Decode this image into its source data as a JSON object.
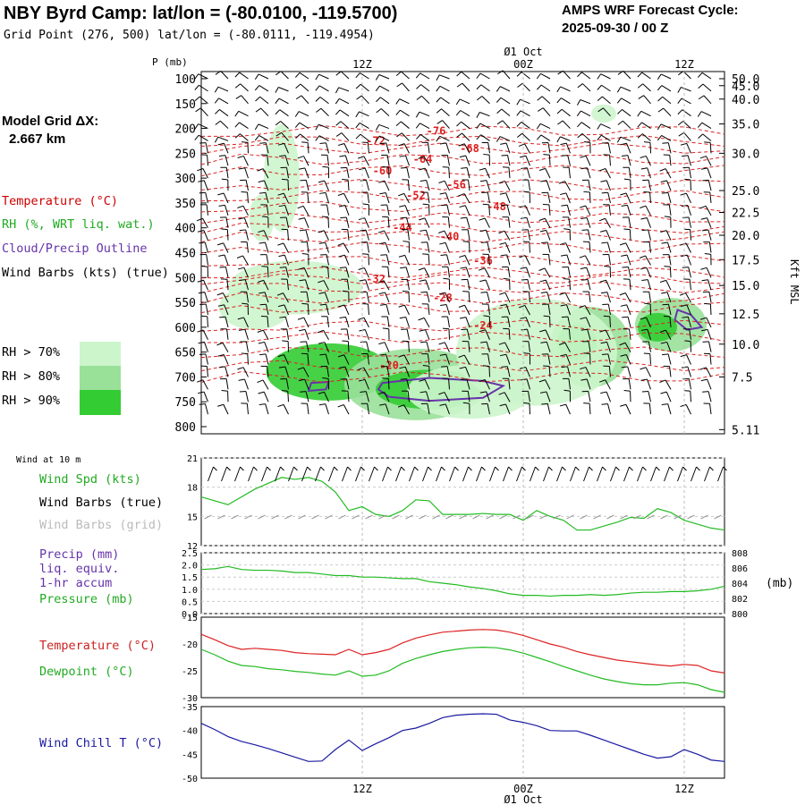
{
  "header": {
    "title": "NBY Byrd Camp:  lat/lon = (-80.0100, -119.5700)",
    "grid_point": "Grid Point (276, 500) lat/lon = (-80.0111, -119.4954)",
    "cycle_label": "AMPS WRF Forecast Cycle:",
    "cycle_value": "2025-09-30 / 00  Z"
  },
  "sidebar": {
    "model_grid_label": "Model Grid ΔX:",
    "model_grid_value": "2.667 km",
    "legend": [
      {
        "label": "Temperature (°C)",
        "color": "#cc0000"
      },
      {
        "label": "RH (%, WRT liq. wat.)",
        "color": "#22aa22"
      },
      {
        "label": "Cloud/Precip Outline",
        "color": "#6633aa"
      },
      {
        "label": "Wind Barbs (kts) (true)",
        "color": "#000000"
      }
    ],
    "rh_swatches": [
      {
        "label": "RH > 70%",
        "color": "#ccf5cc"
      },
      {
        "label": "RH > 80%",
        "color": "#99e099"
      },
      {
        "label": "RH > 90%",
        "color": "#33cc33"
      }
    ]
  },
  "colors": {
    "temperature": "#dd2222",
    "dewpoint": "#22bb22",
    "wind_chill": "#1a1aa0",
    "wind_speed": "#22bb22",
    "pressure": "#22bb22",
    "outline": "#6633aa",
    "grid": "#999999"
  },
  "time_axis": {
    "top_labels": [
      {
        "text": "12Z",
        "hour": 12
      },
      {
        "text": "00Z",
        "hour": 24
      },
      {
        "text": "12Z",
        "hour": 36
      }
    ],
    "date_label": "Ø1 Oct",
    "start_hour": 0,
    "end_hour": 39
  },
  "chart_data": [
    {
      "type": "heatmap",
      "title": "Vertical cross-section (time-height)",
      "ylabel": "P (mb)",
      "y2label": "Kft MSL",
      "pressure_ticks": [
        100,
        150,
        200,
        250,
        300,
        350,
        400,
        450,
        500,
        550,
        600,
        650,
        700,
        750,
        800
      ],
      "height_ticks": [
        {
          "label": "50.0",
          "p": 100
        },
        {
          "label": "45.0",
          "p": 114
        },
        {
          "label": "40.0",
          "p": 141
        },
        {
          "label": "35.0",
          "p": 191
        },
        {
          "label": "30.0",
          "p": 250
        },
        {
          "label": "25.0",
          "p": 325
        },
        {
          "label": "22.5",
          "p": 369
        },
        {
          "label": "20.0",
          "p": 415
        },
        {
          "label": "17.5",
          "p": 464
        },
        {
          "label": "15.0",
          "p": 516
        },
        {
          "label": "12.5",
          "p": 573
        },
        {
          "label": "10.0",
          "p": 634
        },
        {
          "label": "7.5",
          "p": 700
        },
        {
          "label": "5.11",
          "p": 806
        }
      ],
      "temperature_labels": [
        {
          "text": "-76",
          "hour": 17.5,
          "p": 205
        },
        {
          "text": "-72",
          "hour": 13,
          "p": 225
        },
        {
          "text": "-68",
          "hour": 20,
          "p": 240
        },
        {
          "text": "-64",
          "hour": 16.5,
          "p": 262
        },
        {
          "text": "-60",
          "hour": 13.5,
          "p": 285
        },
        {
          "text": "-56",
          "hour": 19,
          "p": 313
        },
        {
          "text": "-52",
          "hour": 16,
          "p": 335
        },
        {
          "text": "-48",
          "hour": 22,
          "p": 357
        },
        {
          "text": "-44",
          "hour": 15,
          "p": 400
        },
        {
          "text": "-40",
          "hour": 18.5,
          "p": 418
        },
        {
          "text": "-36",
          "hour": 21,
          "p": 466
        },
        {
          "text": "-32",
          "hour": 13,
          "p": 503
        },
        {
          "text": "-28",
          "hour": 18,
          "p": 541
        },
        {
          "text": "-24",
          "hour": 21,
          "p": 597
        },
        {
          "text": "-20",
          "hour": 14,
          "p": 677
        }
      ]
    },
    {
      "type": "line",
      "title": "Wind at 10 m",
      "ylim": [
        12,
        21
      ],
      "yticks": [
        12,
        15,
        18,
        21
      ],
      "series": [
        {
          "name": "Wind Spd (kts)",
          "x": [
            0,
            2,
            4,
            6,
            7,
            8,
            9,
            10,
            11,
            12,
            13,
            14,
            15,
            16,
            17,
            18,
            19,
            20,
            21,
            22,
            23,
            24,
            25,
            26,
            27,
            28,
            29,
            30,
            31,
            32,
            33,
            34,
            35,
            36,
            37,
            38,
            39
          ],
          "values": [
            17,
            16.2,
            17.8,
            19,
            18.8,
            19,
            18.6,
            17.5,
            15.6,
            16,
            15.2,
            15,
            15.6,
            16.7,
            16.6,
            15.2,
            15.2,
            15.2,
            15.3,
            15.2,
            15.2,
            14.6,
            15.6,
            15,
            14.6,
            13.6,
            13.6,
            14,
            14.4,
            14.9,
            14.8,
            15.8,
            15.4,
            14.6,
            14.2,
            13.8,
            13.6
          ]
        }
      ],
      "legend": [
        "Wind Spd (kts)",
        "Wind Barbs (true)",
        "Wind Barbs (grid)"
      ]
    },
    {
      "type": "line",
      "title": "Precip / Pressure",
      "ylim": [
        0,
        2.5
      ],
      "yticks": [
        "0.0",
        "0.5",
        "1.0",
        "1.5",
        "2.0",
        "2.5"
      ],
      "y2lim": [
        800,
        808
      ],
      "y2ticks": [
        "800",
        "802",
        "804",
        "806",
        "808"
      ],
      "y2label": "(mb)",
      "series": [
        {
          "name": "Precip (mm)",
          "values": [
            0,
            0,
            0,
            0,
            0,
            0,
            0,
            0,
            0,
            0,
            0,
            0,
            0,
            0,
            0,
            0,
            0,
            0,
            0,
            0,
            0,
            0,
            0,
            0,
            0,
            0,
            0,
            0,
            0,
            0,
            0,
            0,
            0,
            0,
            0,
            0,
            0,
            0,
            0,
            0
          ]
        },
        {
          "name": "Pressure (mb)",
          "x": [
            0,
            1,
            2,
            3,
            4,
            5,
            6,
            7,
            8,
            9,
            10,
            11,
            12,
            13,
            14,
            15,
            16,
            17,
            18,
            19,
            20,
            21,
            22,
            23,
            24,
            25,
            26,
            27,
            28,
            29,
            30,
            31,
            32,
            33,
            34,
            35,
            36,
            37,
            38,
            39
          ],
          "values": [
            805.8,
            805.9,
            806.2,
            805.8,
            805.7,
            805.7,
            805.6,
            805.4,
            805.4,
            805.2,
            805.0,
            805.0,
            804.8,
            804.8,
            804.7,
            804.6,
            804.6,
            804.2,
            804.0,
            803.8,
            803.5,
            803.3,
            803.0,
            802.6,
            802.4,
            802.4,
            802.3,
            802.4,
            802.4,
            802.5,
            802.4,
            802.5,
            802.7,
            802.8,
            802.8,
            802.9,
            802.9,
            803.0,
            803.2,
            803.6
          ]
        }
      ],
      "legend": [
        "Precip (mm)",
        "liq. equiv.",
        "1-hr accum",
        "Pressure (mb)"
      ]
    },
    {
      "type": "line",
      "title": "Temperature / Dewpoint",
      "ylim": [
        -30,
        -15
      ],
      "yticks": [
        -30,
        -25,
        -20,
        -15
      ],
      "series": [
        {
          "name": "Temperature (°C)",
          "x": [
            0,
            1,
            2,
            3,
            4,
            5,
            6,
            7,
            8,
            9,
            10,
            11,
            12,
            13,
            14,
            15,
            16,
            17,
            18,
            19,
            20,
            21,
            22,
            23,
            24,
            25,
            26,
            27,
            28,
            29,
            30,
            31,
            32,
            33,
            34,
            35,
            36,
            37,
            38,
            39
          ],
          "values": [
            -18.2,
            -19.2,
            -20.3,
            -21,
            -20.8,
            -21,
            -21.2,
            -21.6,
            -21.8,
            -21.9,
            -22,
            -21,
            -22,
            -21.6,
            -21,
            -19.8,
            -18.9,
            -18.3,
            -17.8,
            -17.6,
            -17.4,
            -17.3,
            -17.4,
            -17.8,
            -18.4,
            -19.2,
            -20,
            -20.6,
            -21.4,
            -22,
            -22.5,
            -23,
            -23.3,
            -23.6,
            -23.9,
            -24.1,
            -23.8,
            -24,
            -25,
            -25.4
          ]
        },
        {
          "name": "Dewpoint (°C)",
          "x": [
            0,
            1,
            2,
            3,
            4,
            5,
            6,
            7,
            8,
            9,
            10,
            11,
            12,
            13,
            14,
            15,
            16,
            17,
            18,
            19,
            20,
            21,
            22,
            23,
            24,
            25,
            26,
            27,
            28,
            29,
            30,
            31,
            32,
            33,
            34,
            35,
            36,
            37,
            38,
            39
          ],
          "values": [
            -21,
            -22,
            -23.2,
            -24,
            -24.2,
            -24.6,
            -24.8,
            -25.1,
            -25.3,
            -25.6,
            -25.8,
            -25,
            -26,
            -25.8,
            -25,
            -23.6,
            -22.7,
            -22,
            -21.4,
            -21,
            -20.7,
            -20.6,
            -20.7,
            -21.1,
            -21.7,
            -22.5,
            -23.3,
            -24.2,
            -25,
            -25.8,
            -26.5,
            -27,
            -27.4,
            -27.6,
            -27.6,
            -27.3,
            -27.2,
            -27.6,
            -28.5,
            -29
          ]
        }
      ],
      "legend": [
        "Temperature (°C)",
        "Dewpoint (°C)"
      ]
    },
    {
      "type": "line",
      "title": "Wind Chill",
      "ylim": [
        -50,
        -35
      ],
      "yticks": [
        -50,
        -45,
        -40,
        -35
      ],
      "series": [
        {
          "name": "Wind Chill T (°C)",
          "x": [
            0,
            1,
            2,
            3,
            4,
            5,
            6,
            7,
            8,
            9,
            10,
            11,
            12,
            13,
            14,
            15,
            16,
            17,
            18,
            19,
            20,
            21,
            22,
            23,
            24,
            25,
            26,
            27,
            28,
            29,
            30,
            31,
            32,
            33,
            34,
            35,
            36,
            37,
            38,
            39
          ],
          "values": [
            -38.5,
            -39.8,
            -41.3,
            -42.3,
            -43,
            -43.8,
            -44.7,
            -45.6,
            -46.5,
            -46.4,
            -44,
            -42,
            -44.2,
            -42.8,
            -41.5,
            -40,
            -39.5,
            -38.5,
            -37.3,
            -36.8,
            -36.6,
            -36.5,
            -36.6,
            -37.8,
            -38.3,
            -39,
            -40,
            -40.1,
            -40.1,
            -41,
            -42,
            -43,
            -44,
            -45,
            -45.8,
            -45.5,
            -44,
            -45,
            -46.2,
            -46.5
          ]
        }
      ],
      "legend": [
        "Wind Chill T (°C)"
      ]
    }
  ],
  "panels": {
    "wind_small": "Wind at 10 m",
    "wind_labels": [
      "Wind Spd (kts)",
      "Wind Barbs (true)",
      "Wind Barbs (grid)"
    ],
    "precip_labels": [
      "Precip (mm)",
      "liq. equiv.",
      "1-hr accum",
      "Pressure (mb)"
    ],
    "temp_labels": [
      "Temperature (°C)",
      "Dewpoint (°C)"
    ],
    "chill_labels": [
      "Wind Chill T (°C)"
    ]
  }
}
